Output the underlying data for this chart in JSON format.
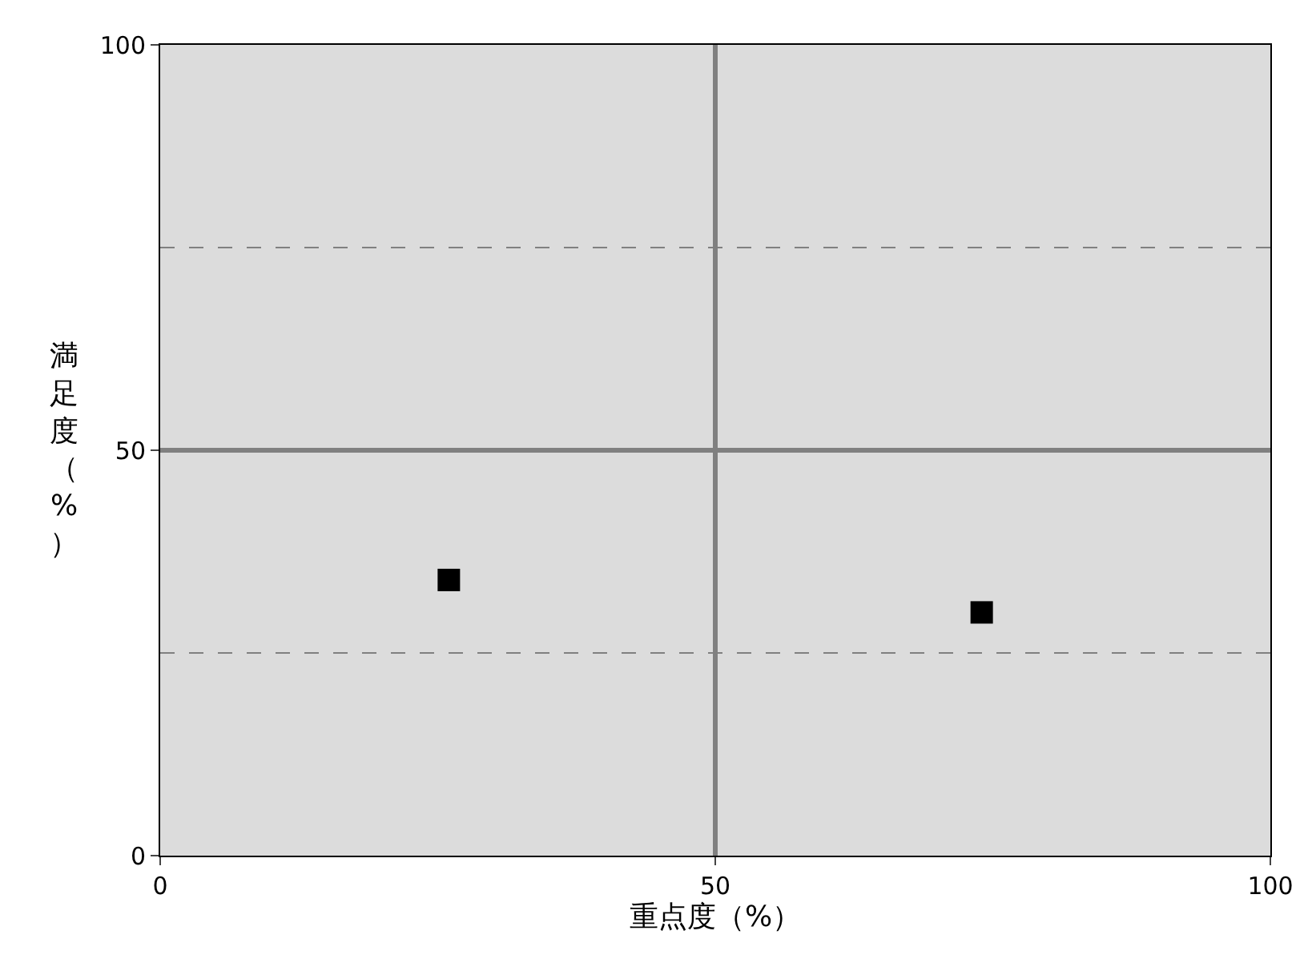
{
  "chart_data": {
    "type": "scatter",
    "xlabel": "重点度（%）",
    "ylabel": "満足度（%）",
    "x": [
      26,
      74
    ],
    "series": [
      {
        "color": "#000000",
        "values": [
          34,
          30
        ]
      }
    ],
    "marker": "square",
    "grid": false,
    "xlim": [
      0,
      100
    ],
    "xticks": [
      0,
      50,
      100
    ],
    "ylim": [
      0,
      100
    ],
    "yticks": [
      0,
      50,
      100
    ],
    "ref_lines": [
      {
        "axis": "x",
        "value": 50,
        "color": "#808080",
        "line_style": "solid"
      },
      {
        "axis": "y",
        "value": 50,
        "color": "#808080",
        "line_style": "solid"
      },
      {
        "axis": "y",
        "value": 25,
        "color": "#808080",
        "line_style": "dashed"
      },
      {
        "axis": "y",
        "value": 75,
        "color": "#808080",
        "line_style": "dashed"
      }
    ]
  }
}
